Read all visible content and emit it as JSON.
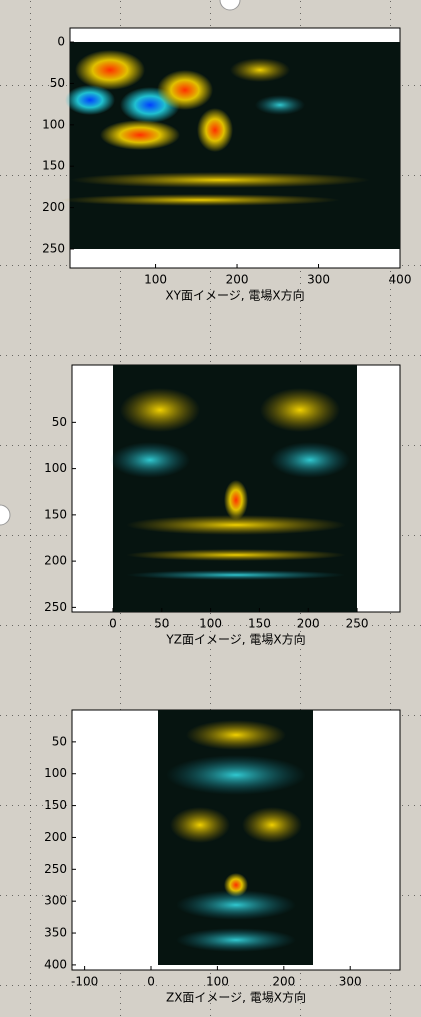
{
  "plots": [
    {
      "xlabel": "XY面イメージ, 電場X方向",
      "xlim": [
        -5,
        400
      ],
      "ylim": [
        -17,
        273
      ],
      "xticks": [
        100,
        200,
        300,
        400
      ],
      "yticks": [
        0,
        50,
        100,
        150,
        200,
        250
      ]
    },
    {
      "xlabel": "YZ面イメージ, 電場X方向",
      "xlim": [
        -42,
        294
      ],
      "ylim": [
        -12,
        255
      ],
      "xticks": [
        0,
        50,
        100,
        150,
        200,
        250
      ],
      "yticks": [
        50,
        100,
        150,
        200,
        250
      ]
    },
    {
      "xlabel": "ZX面イメージ, 電場X方向",
      "xlim": [
        -119,
        375
      ],
      "ylim": [
        0,
        408
      ],
      "xticks": [
        -100,
        0,
        100,
        200,
        300
      ],
      "yticks": [
        50,
        100,
        150,
        200,
        250,
        300,
        350,
        400
      ]
    }
  ]
}
